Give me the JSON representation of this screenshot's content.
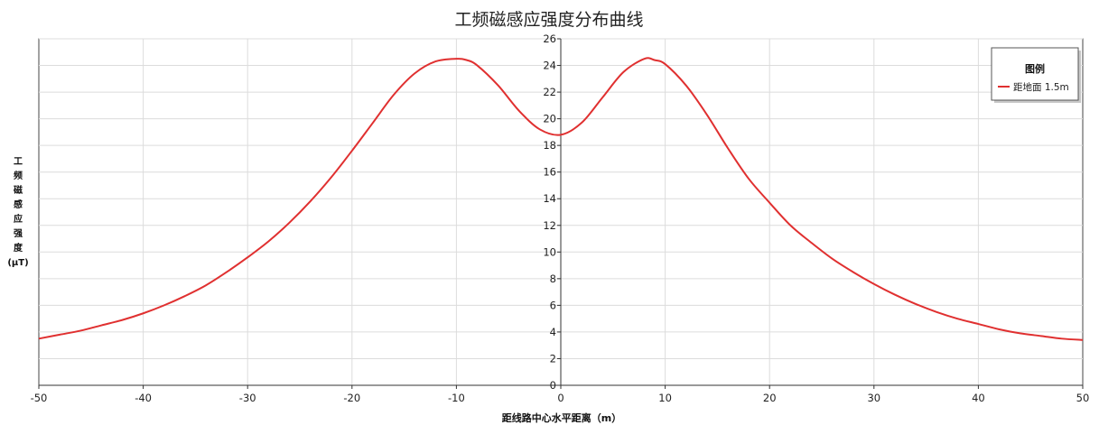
{
  "chart_data": {
    "type": "line",
    "title": "工频磁感应强度分布曲线",
    "xlabel": "距线路中心水平距离（m）",
    "ylabel": "工频磁感应强度",
    "ylabel_unit": "(μT)",
    "xlim": [
      -50,
      50
    ],
    "ylim": [
      0,
      26
    ],
    "x_ticks": [
      -50,
      -40,
      -30,
      -20,
      -10,
      0,
      10,
      20,
      30,
      40,
      50
    ],
    "y_ticks": [
      0,
      2,
      4,
      6,
      8,
      10,
      12,
      14,
      16,
      18,
      20,
      22,
      24,
      26
    ],
    "grid": true,
    "legend": {
      "title": "图例",
      "position": "top-right"
    },
    "series": [
      {
        "name": "距地面 1.5m",
        "color": "#e03030",
        "x": [
          -50,
          -48,
          -46,
          -44,
          -42,
          -40,
          -38,
          -36,
          -34,
          -32,
          -30,
          -28,
          -26,
          -24,
          -22,
          -20,
          -18,
          -16,
          -14,
          -12,
          -10,
          -9,
          -8,
          -6,
          -4,
          -2,
          0,
          2,
          4,
          6,
          8,
          9,
          10,
          12,
          14,
          16,
          18,
          20,
          22,
          24,
          26,
          28,
          30,
          32,
          34,
          36,
          38,
          40,
          42,
          44,
          46,
          48,
          50
        ],
        "values": [
          3.5,
          3.8,
          4.1,
          4.5,
          4.9,
          5.4,
          6.0,
          6.7,
          7.5,
          8.5,
          9.6,
          10.8,
          12.2,
          13.8,
          15.6,
          17.6,
          19.7,
          21.8,
          23.4,
          24.3,
          24.5,
          24.4,
          24.0,
          22.5,
          20.6,
          19.2,
          18.8,
          19.7,
          21.6,
          23.5,
          24.5,
          24.4,
          24.1,
          22.5,
          20.3,
          17.8,
          15.5,
          13.7,
          12.0,
          10.7,
          9.5,
          8.5,
          7.6,
          6.8,
          6.1,
          5.5,
          5.0,
          4.6,
          4.2,
          3.9,
          3.7,
          3.5,
          3.4
        ]
      }
    ]
  }
}
